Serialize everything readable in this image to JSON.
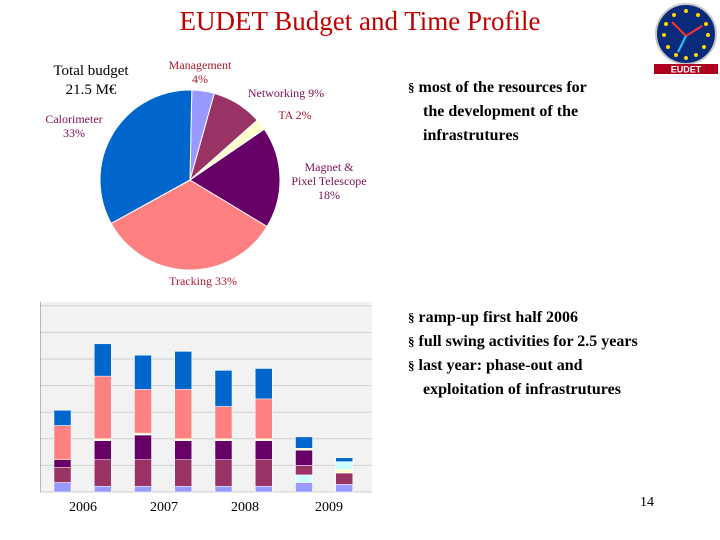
{
  "slide": {
    "title": "EUDET Budget and Time Profile",
    "page_number": "14"
  },
  "budget": {
    "line1": "Total budget",
    "line2": "21.5 M€"
  },
  "pie_labels": {
    "management": "Management",
    "management_pct": "4%",
    "networking": "Networking 9%",
    "ta": "TA 2%",
    "magnet1": "Magnet &",
    "magnet2": "Pixel Telescope",
    "magnet_pct": "18%",
    "tracking": "Tracking 33%",
    "calorimeter": "Calorimeter",
    "calorimeter_pct": "33%"
  },
  "bullets_top": {
    "item1_line1": "most of the resources for",
    "item1_line2": "the development of the",
    "item1_line3": "infrastrutures"
  },
  "bullets_bottom": {
    "item1": "ramp-up first half 2006",
    "item2": "full swing activities for 2.5 years",
    "item3_line1": "last year: phase-out and",
    "item3_line2": "exploitation of infrastrutures"
  },
  "years": [
    "2006",
    "2007",
    "2008",
    "2009"
  ],
  "logo_text": "EUDET",
  "colors": {
    "title": "#c00000",
    "management": "#9999ff",
    "networking": "#993366",
    "ta": "#ffffcc",
    "magnet": "#660066",
    "tracking": "#ff8080",
    "calorimeter": "#0066cc",
    "extra": "#ccffff"
  },
  "chart_data": [
    {
      "type": "pie",
      "title": "",
      "slices": [
        {
          "name": "Management",
          "value": 4,
          "color": "#9999ff"
        },
        {
          "name": "Networking",
          "value": 9,
          "color": "#993366"
        },
        {
          "name": "TA",
          "value": 2,
          "color": "#ffffcc"
        },
        {
          "name": "Magnet & Pixel Telescope",
          "value": 18,
          "color": "#660066"
        },
        {
          "name": "Tracking",
          "value": 33,
          "color": "#ff8080"
        },
        {
          "name": "Calorimeter",
          "value": 33,
          "color": "#0066cc"
        }
      ]
    },
    {
      "type": "bar",
      "stacked": true,
      "title": "",
      "xlabel": "",
      "ylabel": "",
      "ylim": [
        0,
        100
      ],
      "grid": true,
      "tick_labels": [
        "2006",
        "2007",
        "2008",
        "2009"
      ],
      "bars": [
        {
          "segments": [
            5,
            0,
            8,
            4,
            0,
            0,
            18,
            8
          ]
        },
        {
          "segments": [
            3,
            0,
            14,
            10,
            1,
            0,
            33,
            17
          ]
        },
        {
          "segments": [
            3,
            0,
            14,
            13,
            1,
            0,
            23,
            18
          ]
        },
        {
          "segments": [
            3,
            0,
            14,
            10,
            1,
            0,
            26,
            20
          ]
        },
        {
          "segments": [
            3,
            0,
            14,
            10,
            1,
            0,
            17,
            19
          ]
        },
        {
          "segments": [
            3,
            0,
            14,
            10,
            1,
            0,
            21,
            16
          ]
        },
        {
          "segments": [
            5,
            4,
            5,
            8,
            1,
            0,
            0,
            6
          ]
        },
        {
          "segments": [
            4,
            0,
            6,
            0,
            2,
            4,
            0,
            2
          ]
        }
      ],
      "segment_order": [
        "Management",
        "extra",
        "Networking",
        "Magnet & Pixel Telescope",
        "TA",
        "extra",
        "Tracking",
        "Calorimeter"
      ],
      "segment_colors": [
        "#9999ff",
        "#ccffff",
        "#993366",
        "#660066",
        "#ffffcc",
        "#ccffff",
        "#ff8080",
        "#0066cc"
      ]
    }
  ]
}
